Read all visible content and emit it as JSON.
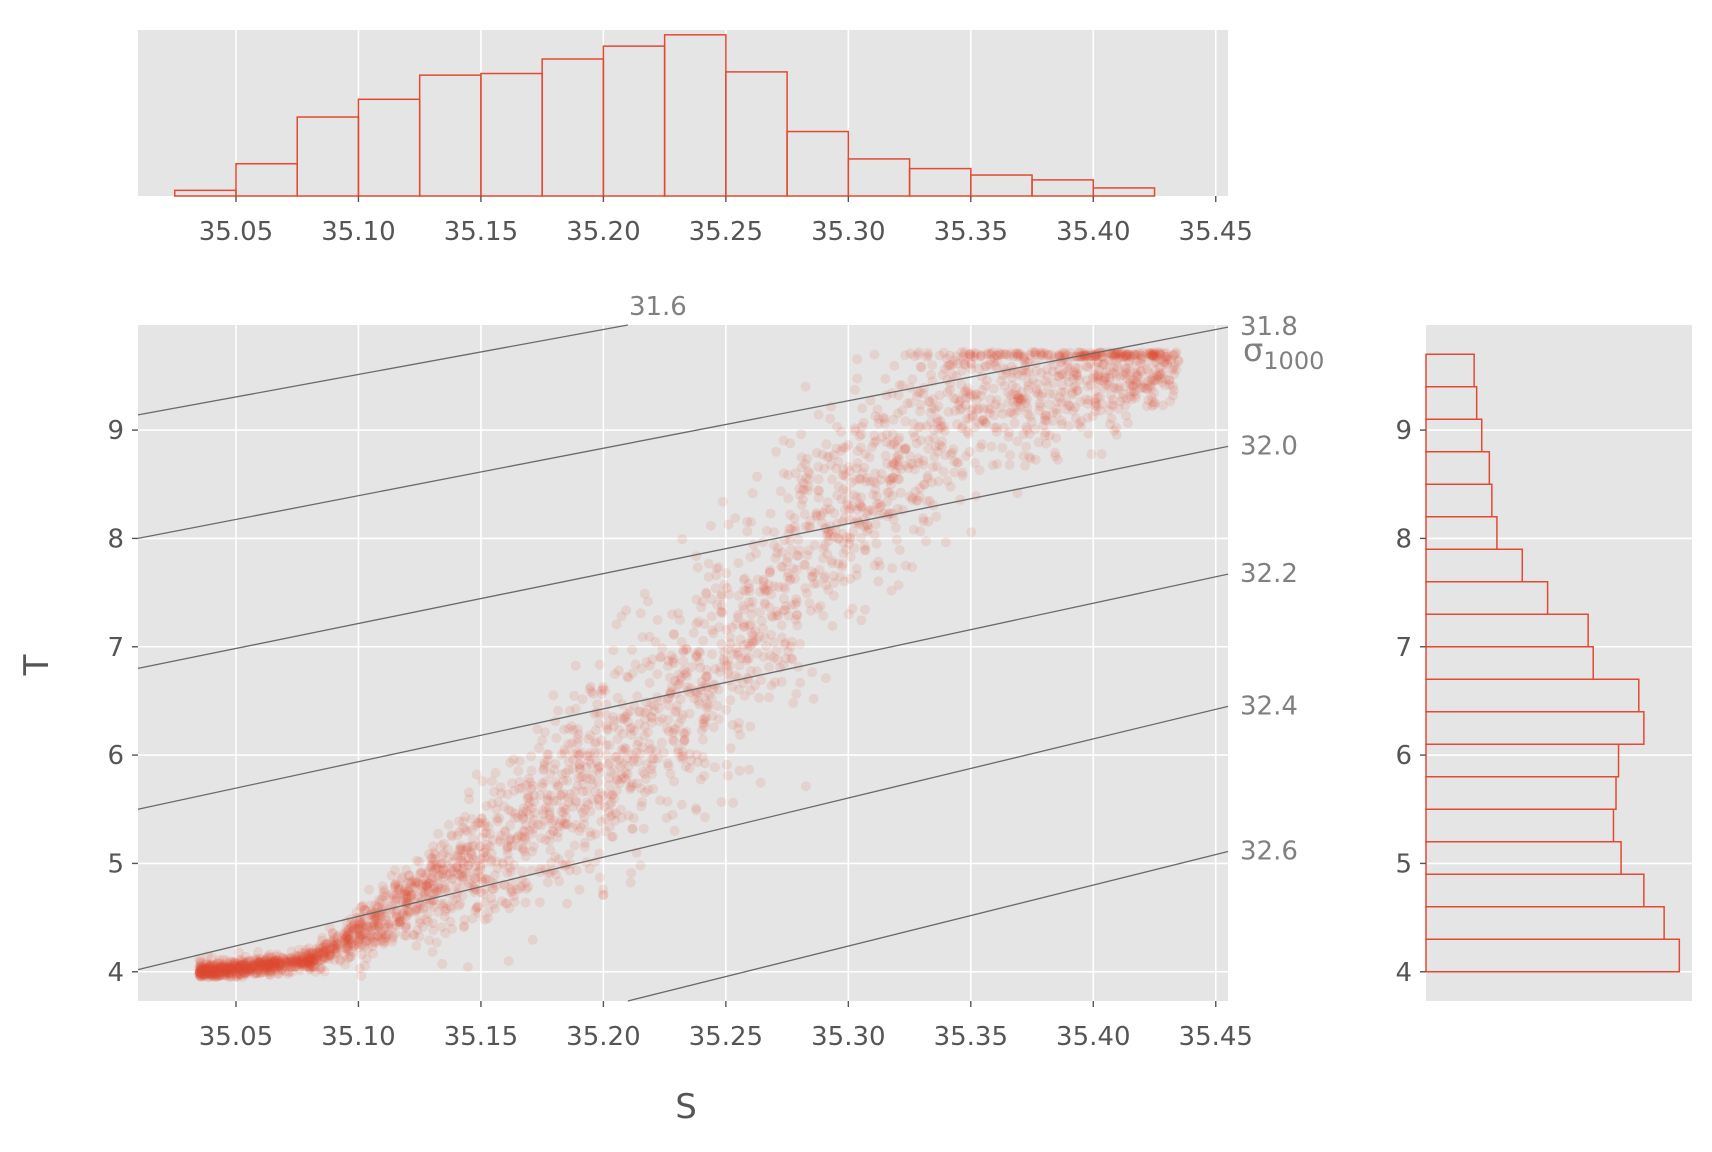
{
  "chart_data": [
    {
      "panel": "top-histogram",
      "type": "histogram",
      "x_ticks": [
        "35.05",
        "35.10",
        "35.15",
        "35.20",
        "35.25",
        "35.30",
        "35.35",
        "35.40",
        "35.45"
      ],
      "bin_edges": [
        35.025,
        35.05,
        35.075,
        35.1,
        35.125,
        35.15,
        35.175,
        35.2,
        35.225,
        35.25,
        35.275,
        35.3,
        35.325,
        35.35,
        35.375,
        35.4,
        35.425
      ],
      "counts": [
        0.035,
        0.2,
        0.49,
        0.6,
        0.75,
        0.76,
        0.85,
        0.93,
        1.0,
        0.77,
        0.4,
        0.23,
        0.17,
        0.13,
        0.1,
        0.05
      ],
      "xlim": [
        35.01,
        35.455
      ],
      "ylim": [
        0,
        1.03
      ],
      "color": "#e24a33",
      "background": "#e5e5e5",
      "grid": true
    },
    {
      "panel": "main-scatter",
      "type": "scatter",
      "xlabel": "S",
      "ylabel": "T",
      "x_ticks": [
        "35.05",
        "35.10",
        "35.15",
        "35.20",
        "35.25",
        "35.30",
        "35.35",
        "35.40",
        "35.45"
      ],
      "y_ticks": [
        "4",
        "5",
        "6",
        "7",
        "8",
        "9"
      ],
      "xlim": [
        35.01,
        35.455
      ],
      "ylim": [
        3.73,
        9.97
      ],
      "point_color": "#e24a33",
      "point_alpha": 0.12,
      "grid": true,
      "background": "#e5e5e5",
      "isopycnal_label": "σ1000",
      "isopycnals": [
        {
          "label": "31.6",
          "segment": [
            [
              35.01,
              9.14
            ],
            [
              35.21,
              9.97
            ]
          ]
        },
        {
          "label": "31.8",
          "segment": [
            [
              35.01,
              8.0
            ],
            [
              35.455,
              9.95
            ]
          ]
        },
        {
          "label": "32.0",
          "segment": [
            [
              35.01,
              6.8
            ],
            [
              35.455,
              8.85
            ]
          ]
        },
        {
          "label": "32.2",
          "segment": [
            [
              35.01,
              5.5
            ],
            [
              35.455,
              7.67
            ]
          ]
        },
        {
          "label": "32.4",
          "segment": [
            [
              35.01,
              4.02
            ],
            [
              35.455,
              6.45
            ]
          ]
        },
        {
          "label": "32.6",
          "segment": [
            [
              35.21,
              3.73
            ],
            [
              35.455,
              5.11
            ]
          ]
        }
      ],
      "scatter_trend": [
        [
          35.04,
          4.0
        ],
        [
          35.08,
          4.1
        ],
        [
          35.12,
          4.6
        ],
        [
          35.16,
          5.2
        ],
        [
          35.2,
          5.9
        ],
        [
          35.25,
          6.9
        ],
        [
          35.3,
          8.4
        ],
        [
          35.35,
          9.3
        ],
        [
          35.42,
          9.6
        ]
      ]
    },
    {
      "panel": "right-histogram",
      "type": "histogram",
      "orientation": "horizontal",
      "y_ticks": [
        "4",
        "5",
        "6",
        "7",
        "8",
        "9"
      ],
      "bin_edges": [
        4.0,
        4.3,
        4.6,
        4.9,
        5.2,
        5.5,
        5.8,
        6.1,
        6.4,
        6.7,
        7.0,
        7.3,
        7.6,
        7.9,
        8.2,
        8.5,
        8.8,
        9.1,
        9.4,
        9.7
      ],
      "counts": [
        1.0,
        0.94,
        0.86,
        0.77,
        0.74,
        0.75,
        0.76,
        0.86,
        0.84,
        0.66,
        0.64,
        0.48,
        0.38,
        0.28,
        0.26,
        0.25,
        0.22,
        0.2,
        0.19
      ],
      "ylim": [
        3.73,
        9.97
      ],
      "xlim": [
        0,
        1.05
      ],
      "color": "#e24a33",
      "background": "#e5e5e5",
      "grid": true
    }
  ]
}
